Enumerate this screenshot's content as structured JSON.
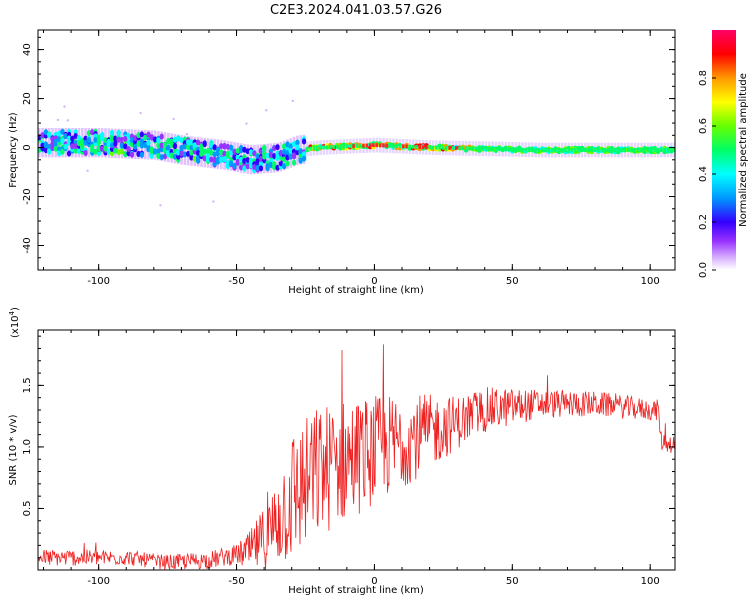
{
  "figure_title": "C2E3.2024.041.03.57.G26",
  "colors": {
    "snr_line": "#ee2222",
    "colormap": [
      "#ffffff",
      "#d9b3ff",
      "#9933ff",
      "#3300ff",
      "#0099ff",
      "#00ffff",
      "#00ff66",
      "#66ff00",
      "#ffff00",
      "#ff9900",
      "#ff0000",
      "#ff0066"
    ]
  },
  "chart_data": [
    {
      "type": "heatmap",
      "title": "",
      "xlabel": "Height of straight line (km)",
      "ylabel": "Frequency (Hz)",
      "xlim": [
        -122,
        109
      ],
      "ylim": [
        -50,
        48
      ],
      "x_ticks": [
        -100,
        -50,
        0,
        50,
        100
      ],
      "x_tick_labels": [
        "-100",
        "-50",
        "0",
        "50",
        "100"
      ],
      "y_ticks": [
        -40,
        -20,
        0,
        20,
        40
      ],
      "y_tick_labels": [
        "-40",
        "-20",
        "0",
        "20",
        "40"
      ],
      "colorbar": {
        "label": "Normalized spectral amplitude",
        "range": [
          0,
          1
        ],
        "ticks": [
          0.0,
          0.2,
          0.4,
          0.6,
          0.8
        ],
        "tick_labels": [
          "0.0",
          "0.2",
          "0.4",
          "0.6",
          "0.8"
        ]
      },
      "band_center": [
        {
          "x": -120,
          "f": 2
        },
        {
          "x": -100,
          "f": 2
        },
        {
          "x": -80,
          "f": 1
        },
        {
          "x": -70,
          "f": -1
        },
        {
          "x": -55,
          "f": -3
        },
        {
          "x": -45,
          "f": -5
        },
        {
          "x": -35,
          "f": -4
        },
        {
          "x": -28,
          "f": -1
        },
        {
          "x": -20,
          "f": 0
        },
        {
          "x": 0,
          "f": 1
        },
        {
          "x": 20,
          "f": 0
        },
        {
          "x": 60,
          "f": -1
        },
        {
          "x": 109,
          "f": -1
        }
      ]
    },
    {
      "type": "line",
      "title": "",
      "xlabel": "Height of straight line (km)",
      "ylabel": "SNR (10 * v/v)",
      "y_scale_note": "(x10",
      "y_scale_exp": "4",
      "xlim": [
        -122,
        109
      ],
      "ylim": [
        0,
        1.95
      ],
      "x_ticks": [
        -100,
        -50,
        0,
        50,
        100
      ],
      "x_tick_labels": [
        "-100",
        "-50",
        "0",
        "50",
        "100"
      ],
      "y_ticks": [
        0.5,
        1.0,
        1.5
      ],
      "y_tick_labels": [
        "0.5",
        "1.0",
        "1.5"
      ],
      "series": [
        {
          "name": "SNR",
          "trend": [
            {
              "x": -122,
              "y": 0.1
            },
            {
              "x": -90,
              "y": 0.1
            },
            {
              "x": -75,
              "y": 0.06
            },
            {
              "x": -60,
              "y": 0.08
            },
            {
              "x": -45,
              "y": 0.15
            },
            {
              "x": -38,
              "y": 0.3
            },
            {
              "x": -30,
              "y": 0.6
            },
            {
              "x": -20,
              "y": 0.8
            },
            {
              "x": -10,
              "y": 0.9
            },
            {
              "x": 0,
              "y": 0.97
            },
            {
              "x": 10,
              "y": 1.05
            },
            {
              "x": 20,
              "y": 1.12
            },
            {
              "x": 30,
              "y": 1.2
            },
            {
              "x": 40,
              "y": 1.3
            },
            {
              "x": 60,
              "y": 1.35
            },
            {
              "x": 80,
              "y": 1.35
            },
            {
              "x": 100,
              "y": 1.3
            },
            {
              "x": 103,
              "y": 1.3
            },
            {
              "x": 104,
              "y": 1.05
            },
            {
              "x": 109,
              "y": 1.02
            }
          ],
          "noise_amplitude": [
            {
              "x": -122,
              "a": 0.07
            },
            {
              "x": -80,
              "a": 0.06
            },
            {
              "x": -50,
              "a": 0.08
            },
            {
              "x": -38,
              "a": 0.3
            },
            {
              "x": -30,
              "a": 0.55
            },
            {
              "x": -20,
              "a": 0.55
            },
            {
              "x": 0,
              "a": 0.45
            },
            {
              "x": 15,
              "a": 0.35
            },
            {
              "x": 30,
              "a": 0.22
            },
            {
              "x": 60,
              "a": 0.12
            },
            {
              "x": 109,
              "a": 0.08
            }
          ]
        }
      ]
    }
  ]
}
